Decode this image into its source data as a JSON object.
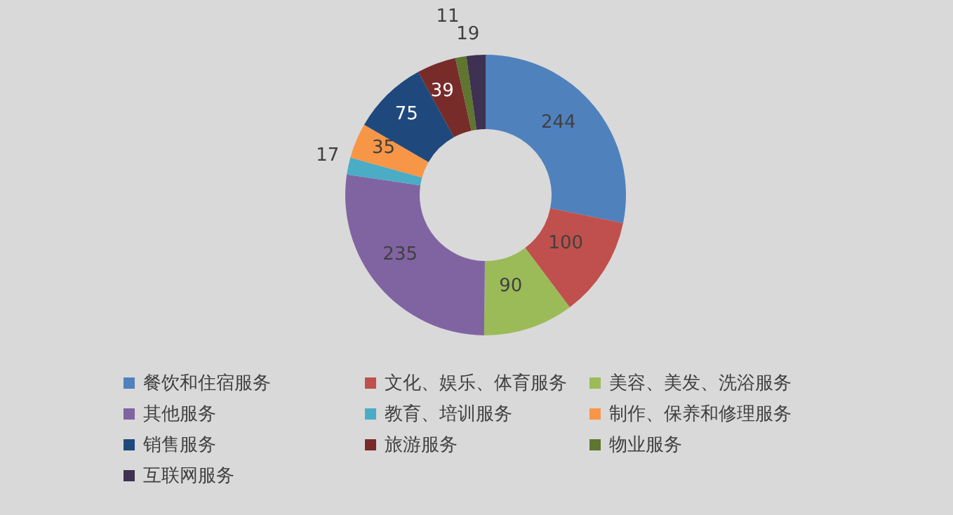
{
  "chart_data": {
    "type": "donut",
    "categories": [
      "餐饮和住宿服务",
      "文化、娱乐、体育服务",
      "美容、美发、洗浴服务",
      "其他服务",
      "教育、培训服务",
      "制作、保养和修理服务",
      "销售服务",
      "旅游服务",
      "物业服务",
      "互联网服务"
    ],
    "values": [
      244,
      100,
      90,
      235,
      17,
      35,
      75,
      39,
      11,
      19
    ],
    "colors": [
      "#4f81bd",
      "#c0504d",
      "#9bbb59",
      "#8064a2",
      "#4bacc6",
      "#f79646",
      "#1f497d",
      "#772c2a",
      "#5f7530",
      "#3f3151"
    ],
    "data_labels": true,
    "legend": "bottom"
  }
}
